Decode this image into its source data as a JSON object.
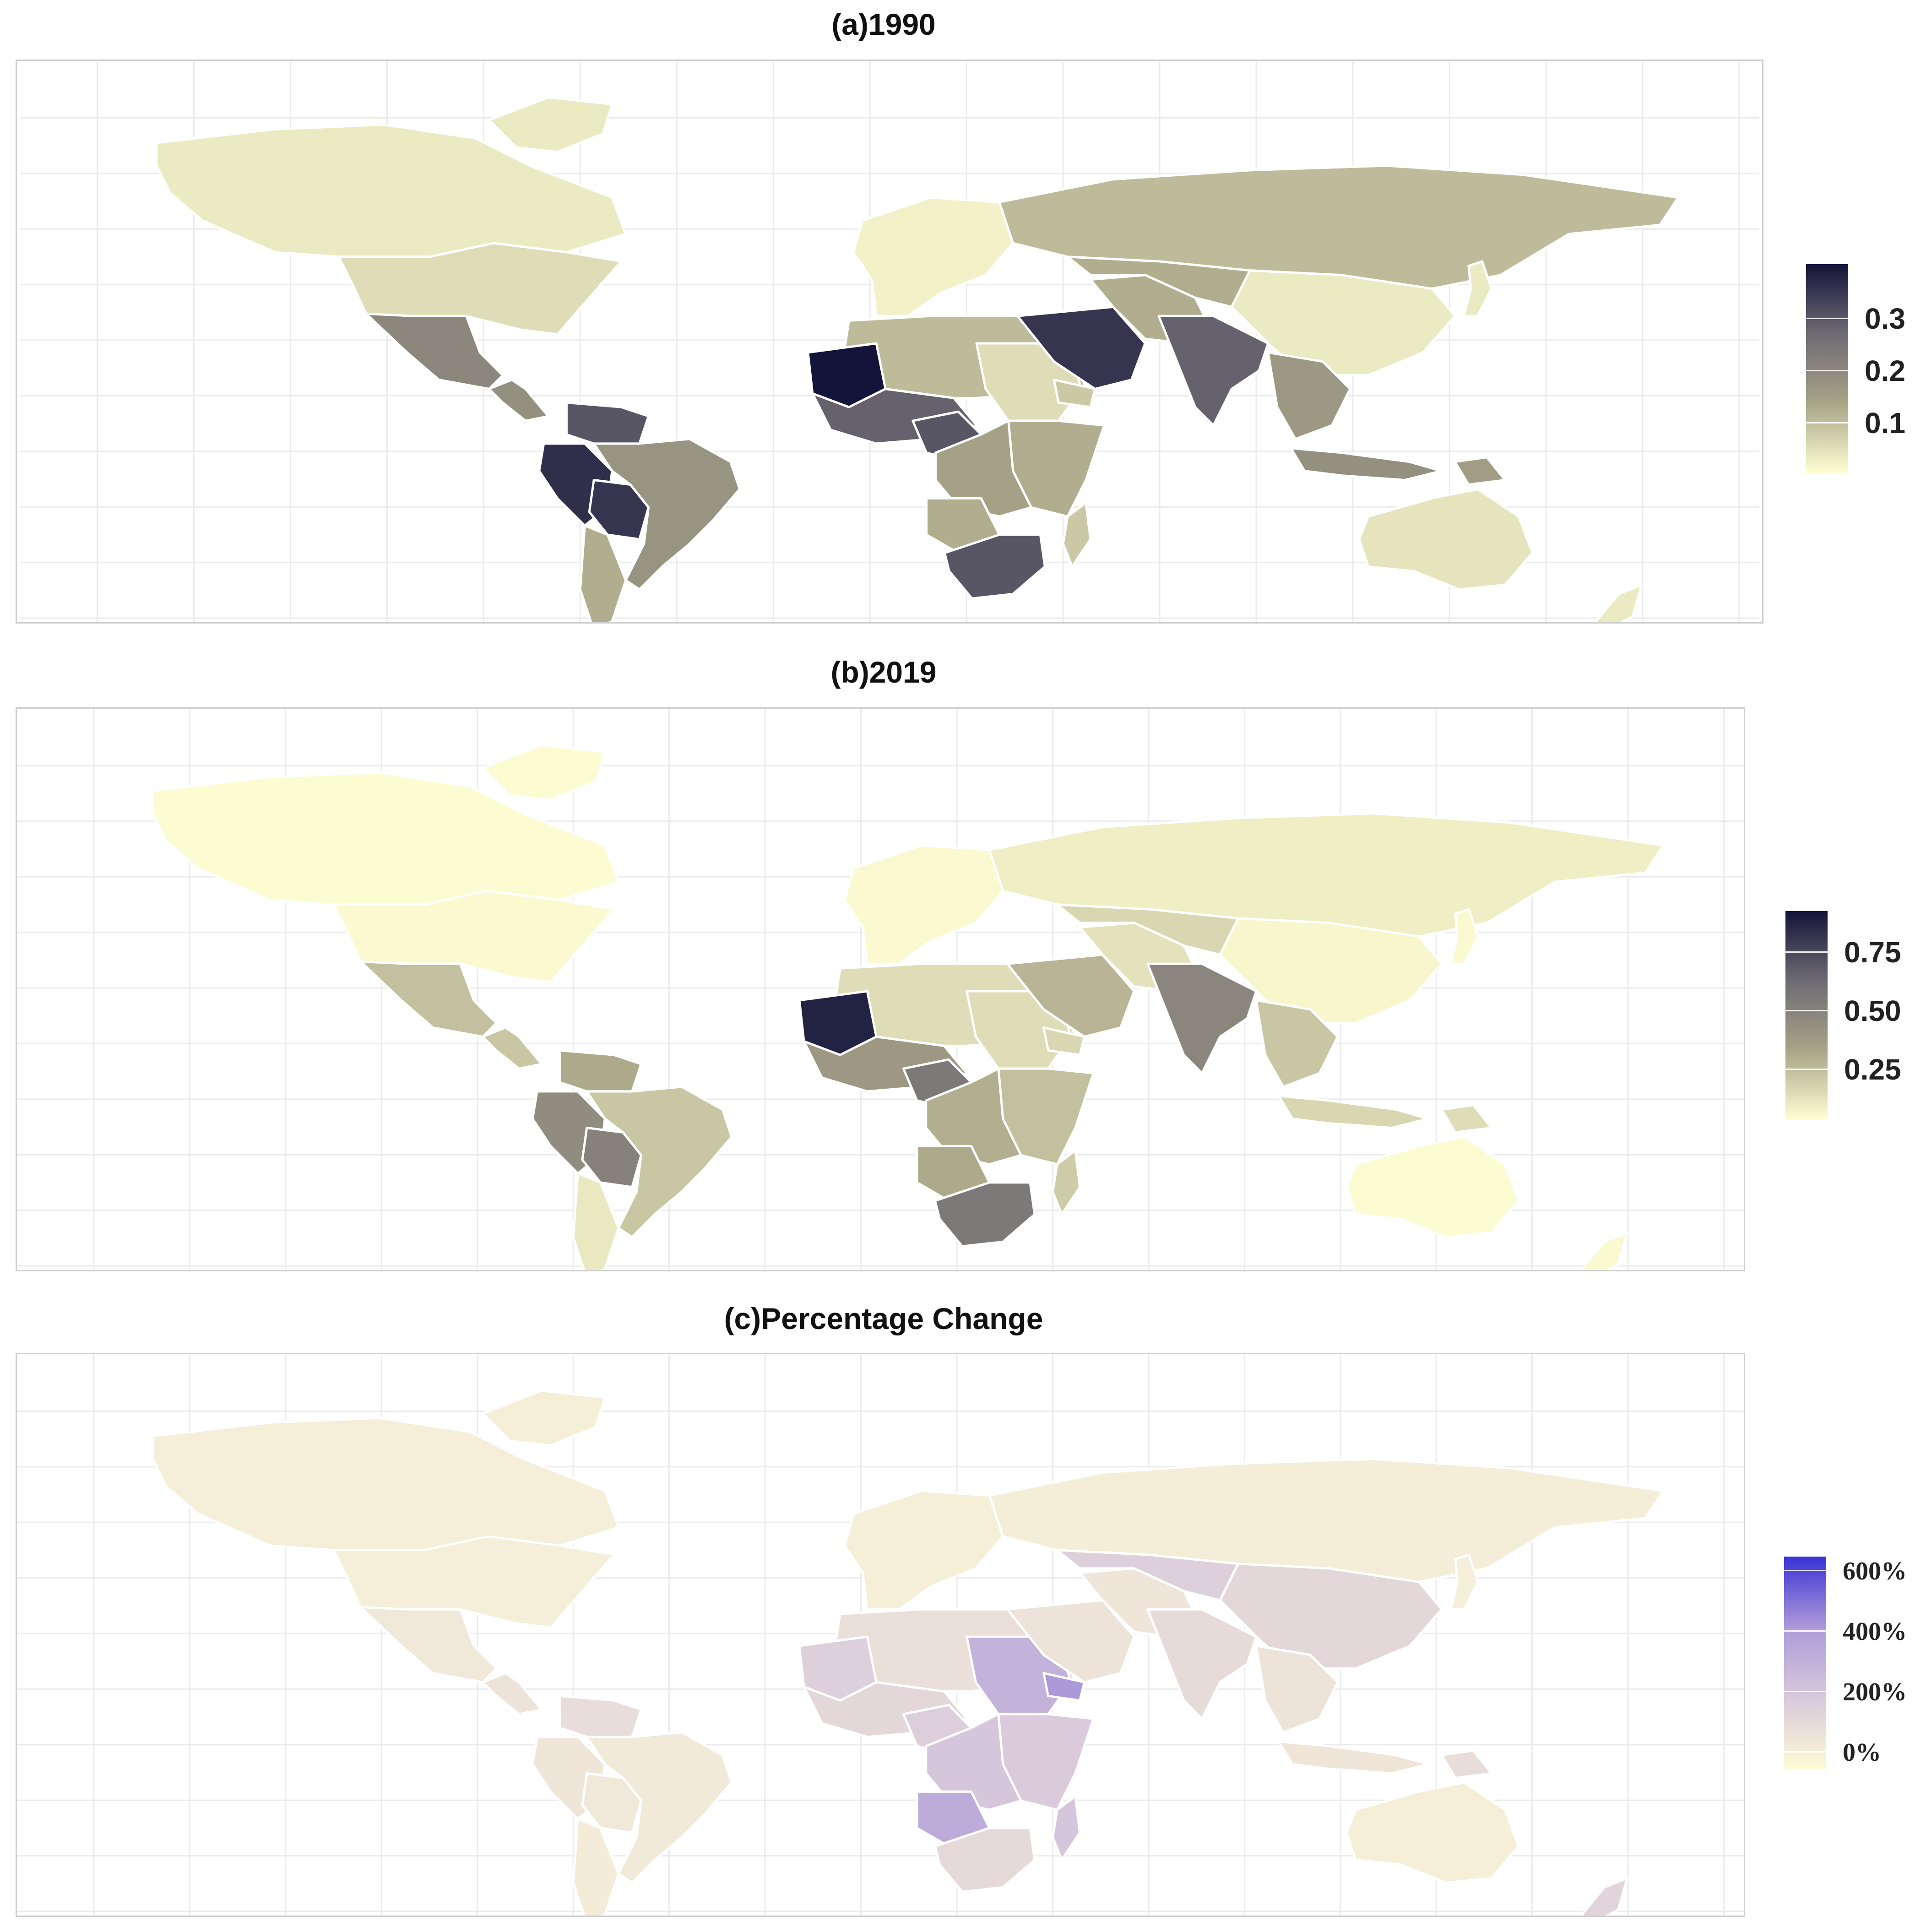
{
  "panels": [
    {
      "title": "(a)1990",
      "legend": {
        "ticks": [
          {
            "label": "0.3",
            "value": 0.3
          },
          {
            "label": "0.2",
            "value": 0.2
          },
          {
            "label": "0.1",
            "value": 0.1
          }
        ],
        "range": [
          0.0,
          0.4
        ],
        "colors": [
          "#ffffd4",
          "#a8a487",
          "#6e6a73",
          "#14143a"
        ]
      }
    },
    {
      "title": "(b)2019",
      "legend": {
        "ticks": [
          {
            "label": "0.75",
            "value": 0.75
          },
          {
            "label": "0.50",
            "value": 0.5
          },
          {
            "label": "0.25",
            "value": 0.25
          }
        ],
        "range": [
          0.0,
          0.95
        ],
        "colors": [
          "#ffffd4",
          "#a8a487",
          "#6e6a73",
          "#14143a"
        ]
      }
    },
    {
      "title": "(c)Percentage Change",
      "legend": {
        "ticks": [
          {
            "label": "600%",
            "value": 600
          },
          {
            "label": "400%",
            "value": 400
          },
          {
            "label": "200%",
            "value": 200
          },
          {
            "label": "0%",
            "value": 0
          }
        ],
        "range": [
          -50,
          650
        ],
        "colors": [
          "#fffbd6",
          "#d9c9dc",
          "#ad9ad8",
          "#3a32d6"
        ]
      }
    }
  ],
  "regions": {
    "na": {
      "v": [
        0.03,
        0.01,
        10
      ]
    },
    "us": {
      "v": [
        0.05,
        0.02,
        12
      ]
    },
    "mex": {
      "v": [
        0.2,
        0.22,
        40
      ]
    },
    "cam": {
      "v": [
        0.18,
        0.2,
        60
      ]
    },
    "sa": {
      "v": [
        0.17,
        0.2,
        30
      ]
    },
    "ven": {
      "v": [
        0.3,
        0.3,
        90
      ]
    },
    "peru": {
      "v": [
        0.36,
        0.45,
        50
      ]
    },
    "bol": {
      "v": [
        0.35,
        0.5,
        40
      ]
    },
    "chile": {
      "v": [
        0.12,
        0.08,
        20
      ]
    },
    "greenland": {
      "v": [
        0.03,
        0.01,
        5
      ]
    },
    "eur": {
      "v": [
        0.02,
        0.02,
        5
      ]
    },
    "russia": {
      "v": [
        0.1,
        0.06,
        15
      ]
    },
    "nafr": {
      "v": [
        0.1,
        0.12,
        80
      ]
    },
    "mauri": {
      "v": [
        0.4,
        0.9,
        150
      ]
    },
    "wafr": {
      "v": [
        0.28,
        0.38,
        120
      ]
    },
    "nig": {
      "v": [
        0.3,
        0.55,
        160
      ]
    },
    "sudan": {
      "v": [
        0.05,
        0.12,
        300
      ]
    },
    "eafr": {
      "v": [
        0.12,
        0.22,
        180
      ]
    },
    "cafr": {
      "v": [
        0.14,
        0.28,
        200
      ]
    },
    "angola": {
      "v": [
        0.12,
        0.3,
        330
      ]
    },
    "safr": {
      "v": [
        0.3,
        0.55,
        110
      ]
    },
    "madag": {
      "v": [
        0.08,
        0.18,
        200
      ]
    },
    "arab": {
      "v": [
        0.35,
        0.26,
        60
      ]
    },
    "yemen": {
      "v": [
        0.08,
        0.14,
        420
      ]
    },
    "iran": {
      "v": [
        0.12,
        0.1,
        50
      ]
    },
    "stan": {
      "v": [
        0.12,
        0.14,
        150
      ]
    },
    "china": {
      "v": [
        0.03,
        0.03,
        120
      ]
    },
    "india": {
      "v": [
        0.28,
        0.48,
        100
      ]
    },
    "sea": {
      "v": [
        0.16,
        0.2,
        60
      ]
    },
    "indo": {
      "v": [
        0.18,
        0.14,
        50
      ]
    },
    "png": {
      "v": [
        0.15,
        0.12,
        90
      ]
    },
    "aus": {
      "v": [
        0.04,
        0.01,
        8
      ]
    },
    "nz": {
      "v": [
        0.03,
        0.02,
        130
      ]
    },
    "japan": {
      "v": [
        0.03,
        0.02,
        10
      ]
    }
  }
}
